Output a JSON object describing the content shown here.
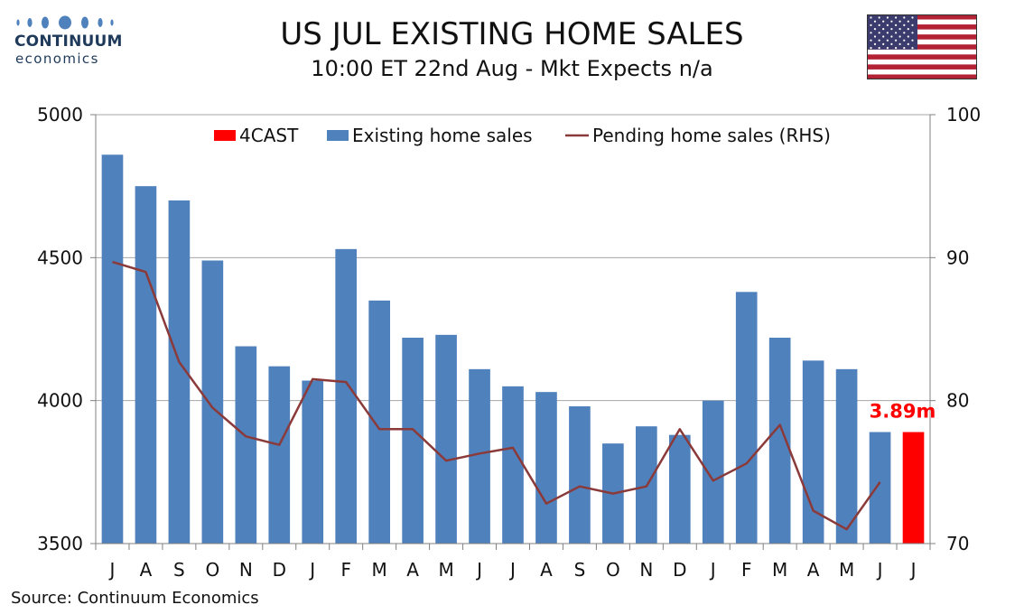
{
  "logo": {
    "name": "CONTINUUM",
    "sub": "economics"
  },
  "header": {
    "title": "US JUL EXISTING HOME SALES",
    "subtitle": "10:00 ET 22nd Aug - Mkt Expects n/a"
  },
  "flag_icon": "us-flag-icon",
  "source": "Source: Continuum Economics",
  "colors": {
    "bars": "#4f81bd",
    "forecast": "#ff0000",
    "line": "#8b3a3a",
    "grid": "#a6a6a6",
    "logo": "#1f3a5a"
  },
  "chart_data": {
    "type": "bar",
    "categories": [
      "J",
      "A",
      "S",
      "O",
      "N",
      "D",
      "J",
      "F",
      "M",
      "A",
      "M",
      "J",
      "J",
      "A",
      "S",
      "O",
      "N",
      "D",
      "J",
      "F",
      "M",
      "A",
      "M",
      "J",
      "J"
    ],
    "series": [
      {
        "name": "4CAST",
        "kind": "bar",
        "axis": "left",
        "values": [
          null,
          null,
          null,
          null,
          null,
          null,
          null,
          null,
          null,
          null,
          null,
          null,
          null,
          null,
          null,
          null,
          null,
          null,
          null,
          null,
          null,
          null,
          null,
          null,
          3890
        ]
      },
      {
        "name": "Existing home sales",
        "kind": "bar",
        "axis": "left",
        "values": [
          4860,
          4750,
          4700,
          4490,
          4190,
          4120,
          4070,
          4530,
          4350,
          4220,
          4230,
          4110,
          4050,
          4030,
          3980,
          3850,
          3910,
          3880,
          4000,
          4380,
          4220,
          4140,
          4110,
          3890,
          null
        ]
      },
      {
        "name": "Pending home sales (RHS)",
        "kind": "line",
        "axis": "right",
        "values": [
          89.7,
          89.0,
          82.7,
          79.5,
          77.5,
          76.9,
          81.5,
          81.3,
          78.0,
          78.0,
          75.8,
          76.3,
          76.7,
          72.8,
          74.0,
          73.5,
          74.0,
          78.0,
          74.4,
          75.6,
          78.3,
          72.3,
          71.0,
          74.3,
          null
        ]
      }
    ],
    "ylim": [
      3500,
      5000
    ],
    "yticks": [
      3500,
      4000,
      4500,
      5000
    ],
    "y2lim": [
      70,
      100
    ],
    "y2ticks": [
      70,
      80,
      90,
      100
    ],
    "annotation": "3.89m",
    "grid": true,
    "legend_position": "top"
  }
}
